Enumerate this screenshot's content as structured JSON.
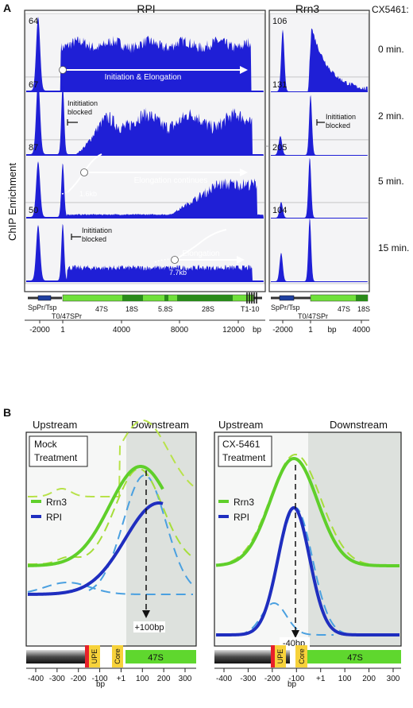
{
  "panel_a": {
    "letter": "A",
    "rpi_title": "RPI",
    "rrn3_title": "Rrn3",
    "cx_header": "CX5461:",
    "y_axis_label": "ChIP Enrichment",
    "rows": [
      {
        "time": "0 min.",
        "rpi_max": "64",
        "rrn3_max": "106"
      },
      {
        "time": "2 min.",
        "rpi_max": "67",
        "rrn3_max": "131"
      },
      {
        "time": "5 min.",
        "rpi_max": "87",
        "rrn3_max": "205"
      },
      {
        "time": "15 min.",
        "rpi_max": "50",
        "rrn3_max": "104"
      }
    ],
    "annotations": {
      "init_elong": "Initiation & Elongation",
      "init_blocked_1": "Inititiation",
      "init_blocked_2": "blocked",
      "elong_continues": "Elongation continues",
      "dist_16": "1.6kb",
      "elongation": "Elongation",
      "dist_77": "7.7kb"
    },
    "gene_map": {
      "sppr": "SpPr/Tsp",
      "t0": "T0/47SPr",
      "s47": "47S",
      "s18": "18S",
      "s58": "5.8S",
      "s28": "28S",
      "t110": "T1-10"
    },
    "rpi_ticks": [
      "-2000",
      "1",
      "4000",
      "8000",
      "12000"
    ],
    "rrn3_ticks": [
      "-2000",
      "1",
      "4000"
    ],
    "bp": "bp"
  },
  "panel_b": {
    "letter": "B",
    "upstream": "Upstream",
    "downstream": "Downstream",
    "left_box_1": "Mock",
    "left_box_2": "Treatment",
    "right_box_1": "CX-5461",
    "right_box_2": "Treatment",
    "legend_rrn3": "Rrn3",
    "legend_rpi": "RPI",
    "left_shift": "+100bp",
    "right_shift": "-40bp",
    "upe": "UPE",
    "core": "Core",
    "s47": "47S",
    "ticks": [
      "-400",
      "-300",
      "-200",
      "-100",
      "+1",
      "100",
      "200",
      "300"
    ],
    "bp": "bp"
  },
  "colors": {
    "rpi": "#1f1fd6",
    "rrn3": "#5fcf2a",
    "gene_green": "#6fe03a",
    "dark_green": "#2a8a1a",
    "upe_yellow": "#f7d23a",
    "upe_red": "#e8202a"
  }
}
